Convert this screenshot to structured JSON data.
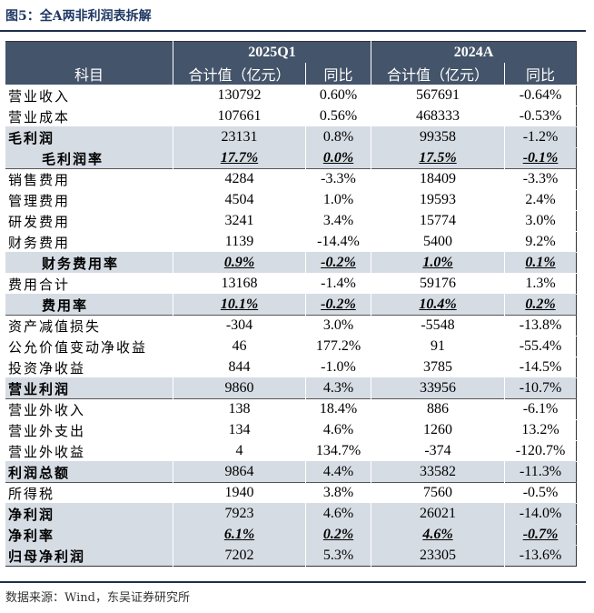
{
  "title": "图5：全A两非利润表拆解",
  "header": {
    "period1": "2025Q1",
    "period2": "2024A",
    "col_item": "科目",
    "col_value1": "合计值（亿元）",
    "col_yoy1": "同比",
    "col_value2": "合计值（亿元）",
    "col_yoy2": "同比"
  },
  "rows": [
    {
      "label": "营业收入",
      "v1": "130792",
      "y1": "0.60%",
      "v2": "567691",
      "y2": "-0.64%"
    },
    {
      "label": "营业成本",
      "v1": "107661",
      "y1": "0.56%",
      "v2": "468333",
      "y2": "-0.53%"
    },
    {
      "label": "毛利润",
      "v1": "23131",
      "y1": "0.8%",
      "v2": "99358",
      "y2": "-1.2%"
    },
    {
      "label": "毛利润率",
      "v1": "17.7%",
      "y1": "0.0%",
      "v2": "17.5%",
      "y2": "-0.1%"
    },
    {
      "label": "销售费用",
      "v1": "4284",
      "y1": "-3.3%",
      "v2": "18409",
      "y2": "-3.3%"
    },
    {
      "label": "管理费用",
      "v1": "4504",
      "y1": "1.0%",
      "v2": "19593",
      "y2": "2.4%"
    },
    {
      "label": "研发费用",
      "v1": "3241",
      "y1": "3.4%",
      "v2": "15774",
      "y2": "3.0%"
    },
    {
      "label": "财务费用",
      "v1": "1139",
      "y1": "-14.4%",
      "v2": "5400",
      "y2": "9.2%"
    },
    {
      "label": "财务费用率",
      "v1": "0.9%",
      "y1": "-0.2%",
      "v2": "1.0%",
      "y2": "0.1%"
    },
    {
      "label": "费用合计",
      "v1": "13168",
      "y1": "-1.4%",
      "v2": "59176",
      "y2": "1.3%"
    },
    {
      "label": "费用率",
      "v1": "10.1%",
      "y1": "-0.2%",
      "v2": "10.4%",
      "y2": "0.2%"
    },
    {
      "label": "资产减值损失",
      "v1": "-304",
      "y1": "3.0%",
      "v2": "-5548",
      "y2": "-13.8%"
    },
    {
      "label": "公允价值变动净收益",
      "v1": "46",
      "y1": "177.2%",
      "v2": "91",
      "y2": "-55.4%"
    },
    {
      "label": "投资净收益",
      "v1": "844",
      "y1": "-1.0%",
      "v2": "3785",
      "y2": "-14.5%"
    },
    {
      "label": "营业利润",
      "v1": "9860",
      "y1": "4.3%",
      "v2": "33956",
      "y2": "-10.7%"
    },
    {
      "label": "营业外收入",
      "v1": "138",
      "y1": "18.4%",
      "v2": "886",
      "y2": "-6.1%"
    },
    {
      "label": "营业外支出",
      "v1": "134",
      "y1": "4.6%",
      "v2": "1260",
      "y2": "13.2%"
    },
    {
      "label": "营业外收益",
      "v1": "4",
      "y1": "134.7%",
      "v2": "-374",
      "y2": "-120.7%"
    },
    {
      "label": "利润总额",
      "v1": "9864",
      "y1": "4.4%",
      "v2": "33582",
      "y2": "-11.3%"
    },
    {
      "label": "所得税",
      "v1": "1940",
      "y1": "3.8%",
      "v2": "7560",
      "y2": "-0.5%"
    },
    {
      "label": "净利润",
      "v1": "7923",
      "y1": "4.6%",
      "v2": "26021",
      "y2": "-14.0%"
    },
    {
      "label": "净利率",
      "v1": "6.1%",
      "y1": "0.2%",
      "v2": "4.6%",
      "y2": "-0.7%"
    },
    {
      "label": "归母净利润",
      "v1": "7202",
      "y1": "5.3%",
      "v2": "23305",
      "y2": "-13.6%"
    }
  ],
  "source": "数据来源：Wind，东吴证券研究所",
  "colors": {
    "header_bg": "#44546a",
    "shade_bg": "#d6dce4",
    "title": "#1f3864"
  }
}
